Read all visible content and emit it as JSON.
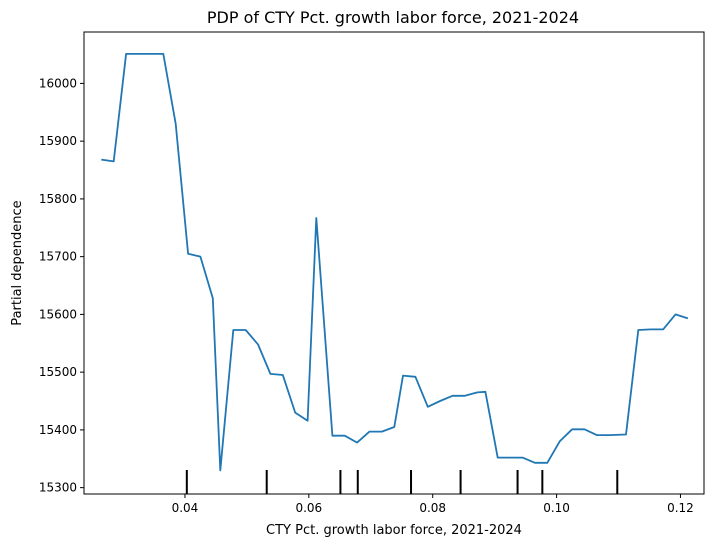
{
  "chart_data": {
    "type": "line",
    "title": "PDP of CTY Pct. growth labor force, 2021-2024",
    "xlabel": "CTY Pct. growth labor force, 2021-2024",
    "ylabel": "Partial dependence",
    "xlim": [
      0.0237,
      0.1238
    ],
    "ylim": [
      15289,
      16089
    ],
    "x_ticks": [
      0.04,
      0.06,
      0.08,
      0.1,
      0.12
    ],
    "x_tick_labels": [
      "0.04",
      "0.06",
      "0.08",
      "0.10",
      "0.12"
    ],
    "y_ticks": [
      15300,
      15400,
      15500,
      15600,
      15700,
      15800,
      15900,
      16000
    ],
    "y_tick_labels": [
      "15300",
      "15400",
      "15500",
      "15600",
      "15700",
      "15800",
      "15900",
      "16000"
    ],
    "grid": false,
    "legend": "none",
    "line_color": "#1f77b4",
    "series": [
      {
        "x": [
          0.0265,
          0.0285,
          0.0305,
          0.0325,
          0.0345,
          0.0365,
          0.0385,
          0.0405,
          0.0425,
          0.0445,
          0.0457,
          0.0478,
          0.0498,
          0.0518,
          0.0538,
          0.0558,
          0.0578,
          0.0598,
          0.0612,
          0.0638,
          0.0658,
          0.0678,
          0.0698,
          0.0718,
          0.0738,
          0.0752,
          0.0772,
          0.0792,
          0.0812,
          0.0832,
          0.0852,
          0.0872,
          0.0885,
          0.0905,
          0.0925,
          0.0945,
          0.0965,
          0.0985,
          0.1005,
          0.1025,
          0.1045,
          0.1065,
          0.1085,
          0.1112,
          0.1132,
          0.1152,
          0.1172,
          0.1192,
          0.1212
        ],
        "y": [
          15868,
          15865,
          16051,
          16051,
          16051,
          16051,
          15930,
          15705,
          15700,
          15628,
          15330,
          15573,
          15573,
          15548,
          15497,
          15495,
          15430,
          15416,
          15767,
          15390,
          15390,
          15378,
          15397,
          15397,
          15405,
          15494,
          15492,
          15440,
          15450,
          15459,
          15459,
          15465,
          15466,
          15352,
          15352,
          15352,
          15343,
          15343,
          15380,
          15401,
          15401,
          15391,
          15391,
          15392,
          15573,
          15574,
          15574,
          15600,
          15593
        ]
      }
    ],
    "rug_x": [
      0.0403,
      0.0532,
      0.0651,
      0.0679,
      0.0765,
      0.0845,
      0.0937,
      0.0977,
      0.1098
    ]
  }
}
